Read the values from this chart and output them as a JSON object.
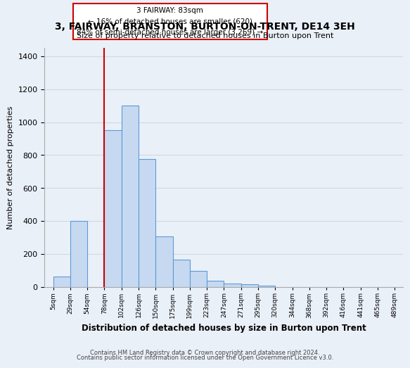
{
  "title": "3, FAIRWAY, BRANSTON, BURTON-ON-TRENT, DE14 3EH",
  "subtitle": "Size of property relative to detached houses in Burton upon Trent",
  "xlabel": "Distribution of detached houses by size in Burton upon Trent",
  "ylabel": "Number of detached properties",
  "footnote1": "Contains HM Land Registry data © Crown copyright and database right 2024.",
  "footnote2": "Contains public sector information licensed under the Open Government Licence v3.0.",
  "bin_labels": [
    "5sqm",
    "29sqm",
    "54sqm",
    "78sqm",
    "102sqm",
    "126sqm",
    "150sqm",
    "175sqm",
    "199sqm",
    "223sqm",
    "247sqm",
    "271sqm",
    "295sqm",
    "320sqm",
    "344sqm",
    "368sqm",
    "392sqm",
    "416sqm",
    "441sqm",
    "465sqm",
    "489sqm"
  ],
  "bar_values": [
    65,
    400,
    0,
    950,
    1100,
    775,
    305,
    165,
    100,
    37,
    20,
    15,
    8,
    0,
    0,
    0,
    0,
    0,
    0,
    0
  ],
  "bar_color": "#c6d9f1",
  "bar_edge_color": "#5b9bd5",
  "vline_x": 3.0,
  "vline_color": "#cc0000",
  "annotation_title": "3 FAIRWAY: 83sqm",
  "annotation_line1": "← 16% of detached houses are smaller (620)",
  "annotation_line2": "84% of semi-detached houses are larger (3,269) →",
  "annotation_box_color": "#ffffff",
  "annotation_box_edge": "#cc0000",
  "ylim": [
    0,
    1450
  ],
  "yticks": [
    0,
    200,
    400,
    600,
    800,
    1000,
    1200,
    1400
  ],
  "grid_color": "#d0d8e8",
  "bg_color": "#eaf0f8"
}
